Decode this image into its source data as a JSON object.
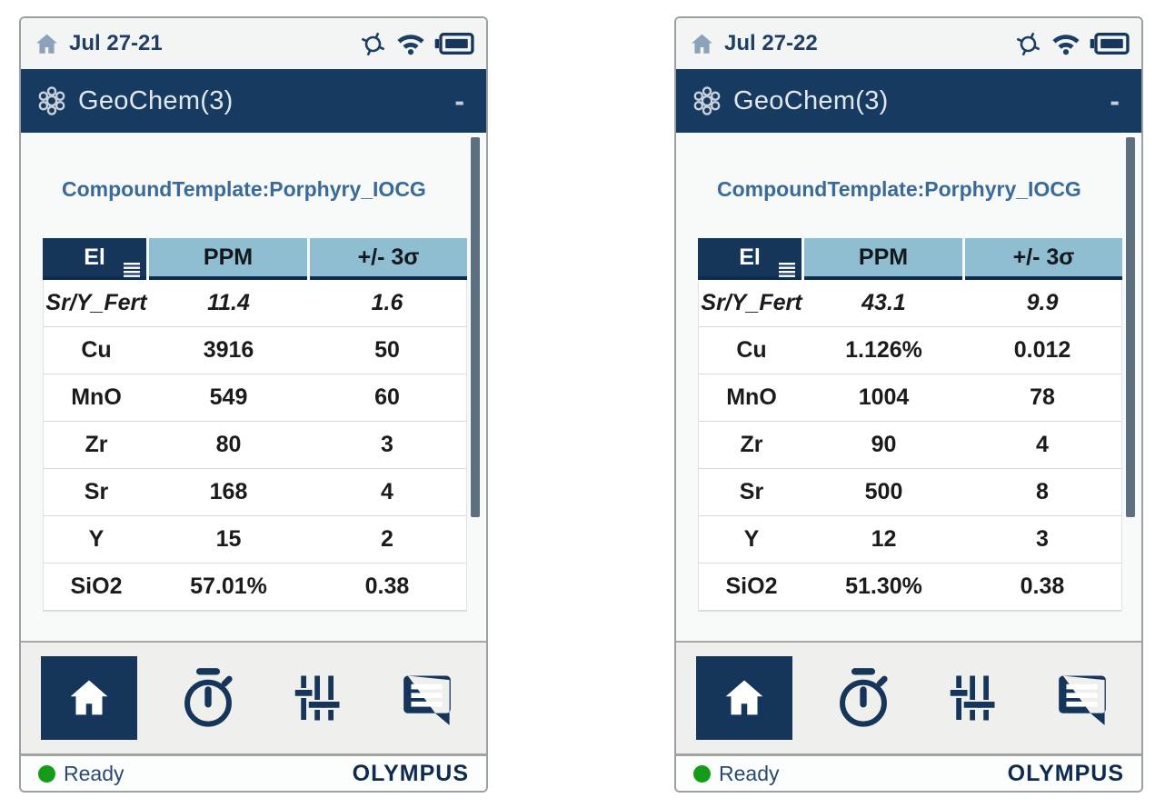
{
  "colors": {
    "title_bar_navy": "#163a60",
    "table_header_blue": "#8fbdd2",
    "table_header_el_navy": "#16355b",
    "status_green": "#169a1a",
    "brand_navy": "#0e2a4e",
    "scrollbar_slate": "#5d7080"
  },
  "nav": {
    "items": [
      {
        "icon": "home-icon",
        "active": true
      },
      {
        "icon": "stopwatch-icon",
        "active": false
      },
      {
        "icon": "sliders-icon",
        "active": false
      },
      {
        "icon": "chat-icon",
        "active": false
      }
    ]
  },
  "screens": [
    {
      "status_bar": {
        "date": "Jul 27-21",
        "icons": [
          "home-icon",
          "gps-icon",
          "wifi-icon",
          "battery-icon"
        ]
      },
      "title_bar": {
        "icon": "atom-icon",
        "app_title": "GeoChem(3)",
        "window_action": "-"
      },
      "content": {
        "template_label": "CompoundTemplate:Porphyry_IOCG",
        "table": {
          "columns": [
            "El",
            "PPM",
            "+/- 3σ"
          ],
          "italic_row_index": 0,
          "rows": [
            [
              "Sr/Y_Fert",
              "11.4",
              "1.6"
            ],
            [
              "Cu",
              "3916",
              "50"
            ],
            [
              "MnO",
              "549",
              "60"
            ],
            [
              "Zr",
              "80",
              "3"
            ],
            [
              "Sr",
              "168",
              "4"
            ],
            [
              "Y",
              "15",
              "2"
            ],
            [
              "SiO2",
              "57.01%",
              "0.38"
            ]
          ]
        }
      },
      "footer": {
        "status_label": "Ready",
        "brand": "OLYMPUS"
      }
    },
    {
      "status_bar": {
        "date": "Jul 27-22",
        "icons": [
          "home-icon",
          "gps-icon",
          "wifi-icon",
          "battery-icon"
        ]
      },
      "title_bar": {
        "icon": "atom-icon",
        "app_title": "GeoChem(3)",
        "window_action": "-"
      },
      "content": {
        "template_label": "CompoundTemplate:Porphyry_IOCG",
        "table": {
          "columns": [
            "El",
            "PPM",
            "+/- 3σ"
          ],
          "italic_row_index": 0,
          "rows": [
            [
              "Sr/Y_Fert",
              "43.1",
              "9.9"
            ],
            [
              "Cu",
              "1.126%",
              "0.012"
            ],
            [
              "MnO",
              "1004",
              "78"
            ],
            [
              "Zr",
              "90",
              "4"
            ],
            [
              "Sr",
              "500",
              "8"
            ],
            [
              "Y",
              "12",
              "3"
            ],
            [
              "SiO2",
              "51.30%",
              "0.38"
            ]
          ]
        }
      },
      "footer": {
        "status_label": "Ready",
        "brand": "OLYMPUS"
      }
    }
  ]
}
